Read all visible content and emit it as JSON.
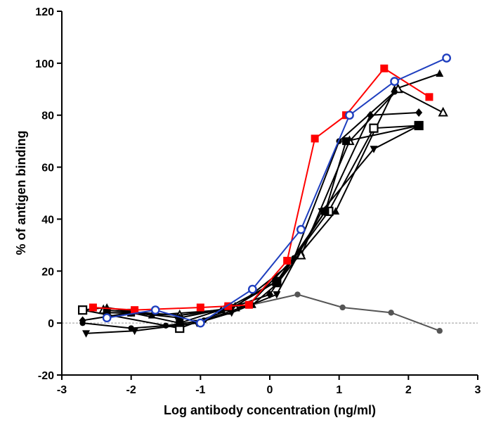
{
  "chart_data": {
    "type": "line",
    "xlabel": "Log antibody concentration (ng/ml)",
    "ylabel": "% of antigen binding",
    "xlim": [
      -3,
      3
    ],
    "ylim": [
      -20,
      120
    ],
    "xticks": [
      "-3",
      "-2",
      "-1",
      "0",
      "1",
      "2",
      "3"
    ],
    "yticks": [
      "-20",
      "0",
      "20",
      "40",
      "60",
      "80",
      "100",
      "120"
    ],
    "zero_line": "dashed gray",
    "grid": false,
    "legend": "none",
    "series": [
      {
        "color": "#ff0000",
        "marker": "filled-square",
        "points": [
          [
            -2.55,
            6
          ],
          [
            -1.95,
            5
          ],
          [
            -1.0,
            6
          ],
          [
            -0.6,
            6.5
          ],
          [
            -0.3,
            7
          ],
          [
            0.25,
            24
          ],
          [
            0.65,
            71
          ],
          [
            1.1,
            80
          ],
          [
            1.65,
            98
          ],
          [
            2.3,
            87
          ]
        ]
      },
      {
        "color": "#1f3fbf",
        "marker": "open-circle",
        "points": [
          [
            -2.35,
            2
          ],
          [
            -1.65,
            5
          ],
          [
            -1.0,
            0
          ],
          [
            -0.25,
            13
          ],
          [
            0.45,
            36
          ],
          [
            1.15,
            80
          ],
          [
            1.8,
            93
          ],
          [
            2.55,
            102
          ]
        ]
      },
      {
        "color": "#000000",
        "marker": "filled-triangle",
        "points": [
          [
            -2.7,
            5
          ],
          [
            -2.35,
            6
          ],
          [
            -1.7,
            3
          ],
          [
            -0.7,
            5
          ],
          [
            -0.25,
            7
          ],
          [
            0.1,
            15
          ],
          [
            0.45,
            27
          ],
          [
            0.95,
            43
          ],
          [
            1.8,
            90
          ],
          [
            2.45,
            96
          ]
        ]
      },
      {
        "color": "#000000",
        "marker": "open-triangle",
        "points": [
          [
            -2.4,
            5
          ],
          [
            -1.3,
            3
          ],
          [
            -0.5,
            6
          ],
          [
            0.45,
            26
          ],
          [
            1.15,
            70
          ],
          [
            1.85,
            90
          ],
          [
            2.5,
            81
          ]
        ]
      },
      {
        "color": "#000000",
        "marker": "filled-diamond",
        "points": [
          [
            -2.7,
            1
          ],
          [
            -2.0,
            4
          ],
          [
            -1.3,
            2
          ],
          [
            -0.55,
            6
          ],
          [
            0.0,
            11
          ],
          [
            0.8,
            43
          ],
          [
            1.45,
            80
          ],
          [
            2.15,
            81
          ]
        ]
      },
      {
        "color": "#000000",
        "marker": "open-square",
        "points": [
          [
            -2.7,
            5
          ],
          [
            -1.3,
            -2
          ],
          [
            -0.6,
            5
          ],
          [
            0.1,
            16
          ],
          [
            0.85,
            43
          ],
          [
            1.5,
            75
          ],
          [
            2.15,
            76
          ]
        ]
      },
      {
        "color": "#000000",
        "marker": "filled-square",
        "points": [
          [
            -2.35,
            4
          ],
          [
            -2.0,
            4
          ],
          [
            -1.3,
            0
          ],
          [
            -0.6,
            6
          ],
          [
            0.1,
            16
          ],
          [
            0.8,
            43
          ],
          [
            1.1,
            70
          ],
          [
            2.15,
            76
          ]
        ]
      },
      {
        "color": "#000000",
        "marker": "filled-triangle-down",
        "points": [
          [
            -2.65,
            -4
          ],
          [
            -1.95,
            -3
          ],
          [
            -1.05,
            0
          ],
          [
            -0.55,
            4
          ],
          [
            0.1,
            11
          ],
          [
            0.75,
            43
          ],
          [
            1.5,
            67
          ],
          [
            2.15,
            76
          ]
        ]
      },
      {
        "color": "#000000",
        "marker": "filled-circle",
        "points": [
          [
            -2.7,
            0
          ],
          [
            -2.0,
            -2
          ],
          [
            -1.5,
            -1
          ],
          [
            -0.95,
            1
          ],
          [
            -0.3,
            7
          ],
          [
            0.35,
            25
          ],
          [
            1.0,
            70
          ],
          [
            1.8,
            89
          ]
        ]
      },
      {
        "color": "#555555",
        "marker": "filled-circle",
        "points": [
          [
            -2.35,
            4
          ],
          [
            -1.3,
            3
          ],
          [
            -0.6,
            5
          ],
          [
            0.4,
            11
          ],
          [
            1.05,
            6
          ],
          [
            1.75,
            4
          ],
          [
            2.45,
            -3
          ]
        ]
      }
    ]
  },
  "colors": {
    "axis": "#000000",
    "zero_line": "#999999"
  }
}
